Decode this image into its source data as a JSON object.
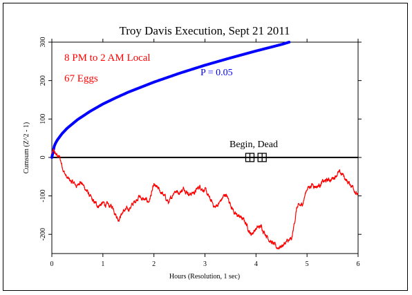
{
  "chart_data": {
    "type": "line",
    "title": "Troy Davis Execution, Sept 21 2011",
    "xlabel": "Hours (Resolution, 1 sec)",
    "ylabel": "Cumsum (Z^2 - 1)",
    "xlim": [
      0,
      6
    ],
    "ylim": [
      -250,
      300
    ],
    "xticks": [
      0,
      1,
      2,
      3,
      4,
      5,
      6
    ],
    "yticks": [
      -200,
      -100,
      0,
      100,
      200,
      300
    ],
    "grid": false,
    "annotations": {
      "time_window": "8 PM to 2 AM Local",
      "eggs": "67 Eggs",
      "p_label": "P = 0.05",
      "event_label": "Begin, Dead"
    },
    "colors": {
      "cumsum": "#ff0000",
      "envelope": "#0000ff",
      "axis": "#000000"
    },
    "envelope": {
      "label": "P = 0.05",
      "x": [
        0.0,
        0.05,
        0.1,
        0.2,
        0.3,
        0.5,
        0.75,
        1.0,
        1.25,
        1.5,
        2.0,
        2.5,
        3.0,
        3.5,
        4.0,
        4.5,
        4.65
      ],
      "y": [
        0,
        31,
        44,
        62,
        76,
        98,
        120,
        139,
        155,
        170,
        196,
        219,
        240,
        259,
        277,
        294,
        300
      ]
    },
    "events": {
      "x": [
        3.88,
        4.12
      ],
      "y": [
        0,
        0
      ]
    },
    "cumsum": {
      "x": [
        0.0,
        0.03,
        0.06,
        0.1,
        0.15,
        0.2,
        0.25,
        0.3,
        0.4,
        0.5,
        0.55,
        0.6,
        0.7,
        0.8,
        0.9,
        1.0,
        1.1,
        1.2,
        1.3,
        1.35,
        1.4,
        1.5,
        1.6,
        1.7,
        1.8,
        1.9,
        2.0,
        2.1,
        2.2,
        2.3,
        2.4,
        2.5,
        2.6,
        2.7,
        2.8,
        2.9,
        3.0,
        3.1,
        3.2,
        3.3,
        3.4,
        3.5,
        3.6,
        3.7,
        3.8,
        3.9,
        4.0,
        4.1,
        4.2,
        4.3,
        4.4,
        4.5,
        4.6,
        4.7,
        4.8,
        4.9,
        5.0,
        5.1,
        5.2,
        5.3,
        5.4,
        5.5,
        5.6,
        5.7,
        5.8,
        5.9,
        6.0
      ],
      "y": [
        10,
        15,
        10,
        5,
        0,
        -20,
        -40,
        -55,
        -65,
        -75,
        -60,
        -70,
        -90,
        -115,
        -125,
        -120,
        -125,
        -130,
        -160,
        -150,
        -140,
        -135,
        -120,
        -100,
        -110,
        -115,
        -75,
        -85,
        -100,
        -120,
        -85,
        -90,
        -80,
        -95,
        -90,
        -75,
        -85,
        -110,
        -130,
        -115,
        -95,
        -120,
        -150,
        -155,
        -170,
        -200,
        -185,
        -180,
        -200,
        -220,
        -235,
        -230,
        -220,
        -215,
        -130,
        -125,
        -80,
        -70,
        -75,
        -65,
        -60,
        -55,
        -40,
        -45,
        -65,
        -75,
        -100
      ]
    }
  }
}
